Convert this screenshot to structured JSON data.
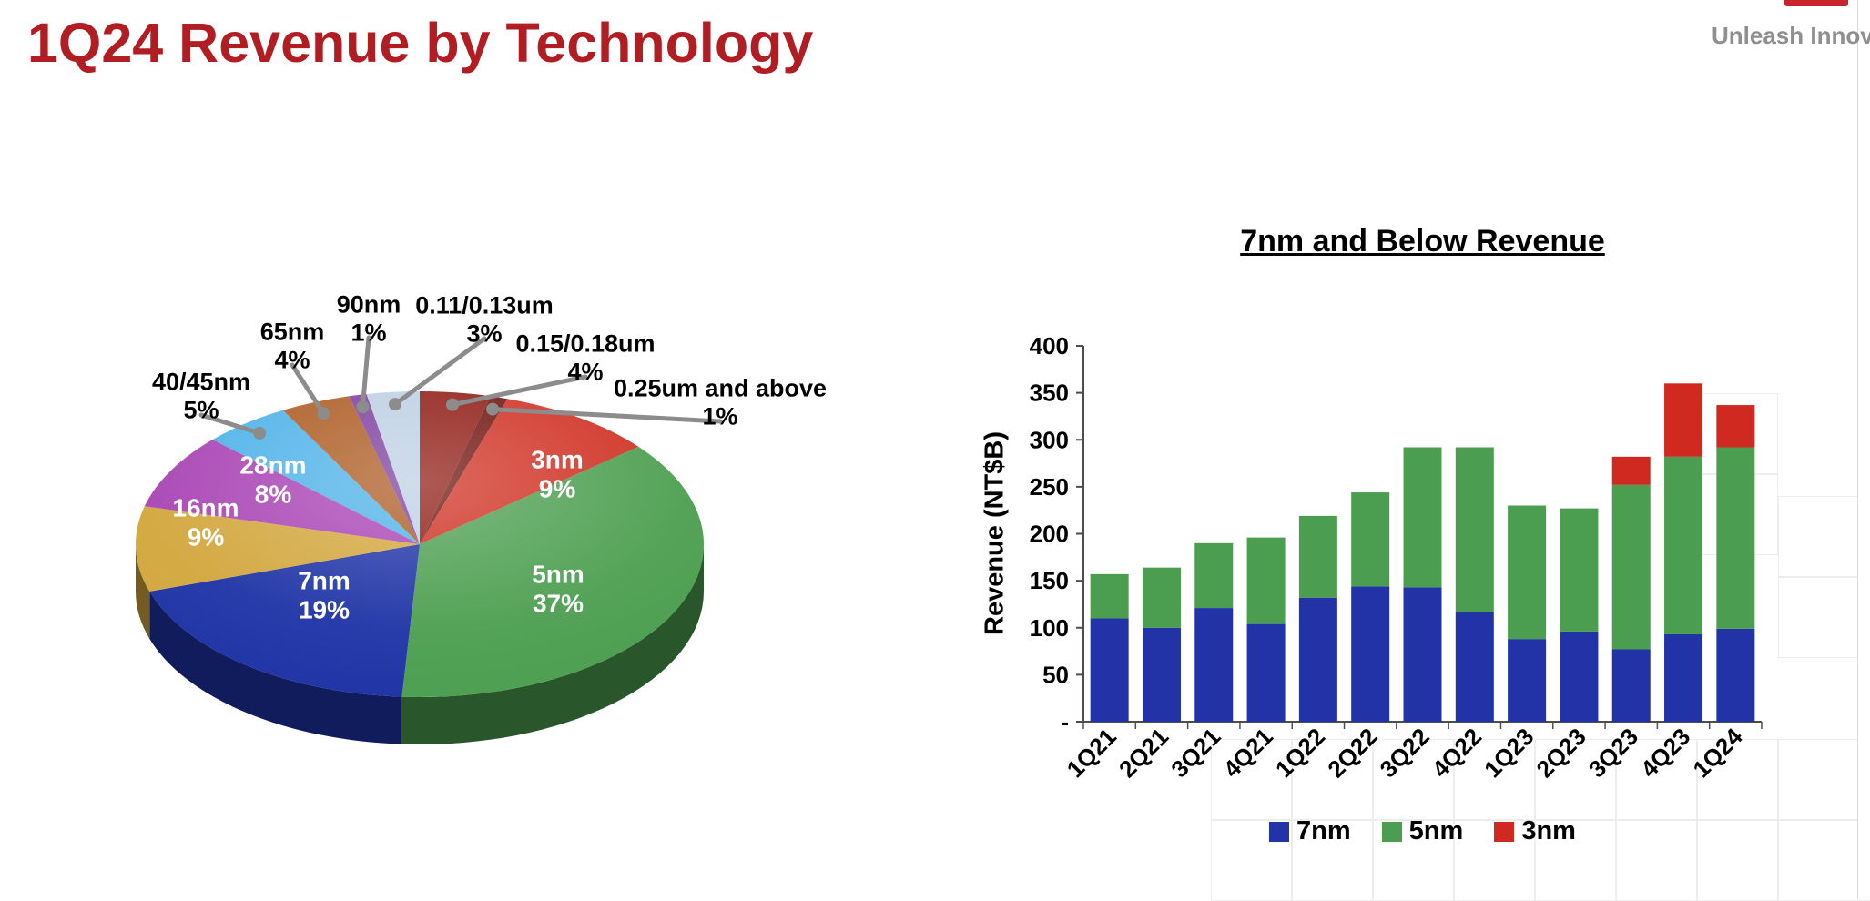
{
  "page": {
    "title": "1Q24 Revenue by Technology",
    "title_color": "#B01E23",
    "brand_tagline": "Unleash Innov",
    "brand_tagline_color": "#8F8F8F",
    "logo_bar_color": "#C9252C"
  },
  "chart_data": [
    {
      "type": "pie",
      "style": "3d",
      "title": "1Q24 Revenue by Technology",
      "unit": "%",
      "inside_label_color": "#FFFFFF",
      "callout_label_color": "#000000",
      "callout_line_color": "#8C8C8C",
      "slices": [
        {
          "label": "0.15/0.18um",
          "value": 4,
          "color": "#8E1A12",
          "label_placement": "callout"
        },
        {
          "label": "0.25um and above",
          "value": 1,
          "color": "#6E120C",
          "label_placement": "callout"
        },
        {
          "label": "3nm",
          "value": 9,
          "color": "#CF2F21",
          "label_placement": "inside"
        },
        {
          "label": "5nm",
          "value": 37,
          "color": "#4B9E4F",
          "label_placement": "inside"
        },
        {
          "label": "7nm",
          "value": 19,
          "color": "#1D32A5",
          "label_placement": "inside"
        },
        {
          "label": "16nm",
          "value": 9,
          "color": "#D2A63C",
          "label_placement": "inside"
        },
        {
          "label": "28nm",
          "value": 8,
          "color": "#A843B4",
          "label_placement": "inside"
        },
        {
          "label": "40/45nm",
          "value": 5,
          "color": "#4DB2E8",
          "label_placement": "callout"
        },
        {
          "label": "65nm",
          "value": 4,
          "color": "#AC5B22",
          "label_placement": "callout"
        },
        {
          "label": "90nm",
          "value": 1,
          "color": "#7C3F9E",
          "label_placement": "callout"
        },
        {
          "label": "0.11/0.13um",
          "value": 3,
          "color": "#BDCFE3",
          "label_placement": "callout"
        }
      ]
    },
    {
      "type": "bar",
      "stacked": true,
      "title": "7nm and Below Revenue",
      "ylabel": "Revenue (NT$B)",
      "ylim": [
        0,
        400
      ],
      "ytick_step": 50,
      "zero_tick_label": "-",
      "grid": false,
      "legend_position": "bottom",
      "categories": [
        "1Q21",
        "2Q21",
        "3Q21",
        "4Q21",
        "1Q22",
        "2Q22",
        "3Q22",
        "4Q22",
        "1Q23",
        "2Q23",
        "3Q23",
        "4Q23",
        "1Q24"
      ],
      "series": [
        {
          "name": "7nm",
          "color": "#2233A8",
          "values": [
            110,
            100,
            121,
            104,
            132,
            144,
            143,
            117,
            88,
            96,
            77,
            93,
            99
          ]
        },
        {
          "name": "5nm",
          "color": "#4B9E4F",
          "values": [
            47,
            64,
            69,
            92,
            87,
            100,
            149,
            175,
            142,
            131,
            175,
            189,
            193
          ]
        },
        {
          "name": "3nm",
          "color": "#D02A20",
          "values": [
            0,
            0,
            0,
            0,
            0,
            0,
            0,
            0,
            0,
            0,
            30,
            78,
            45
          ]
        }
      ]
    }
  ]
}
